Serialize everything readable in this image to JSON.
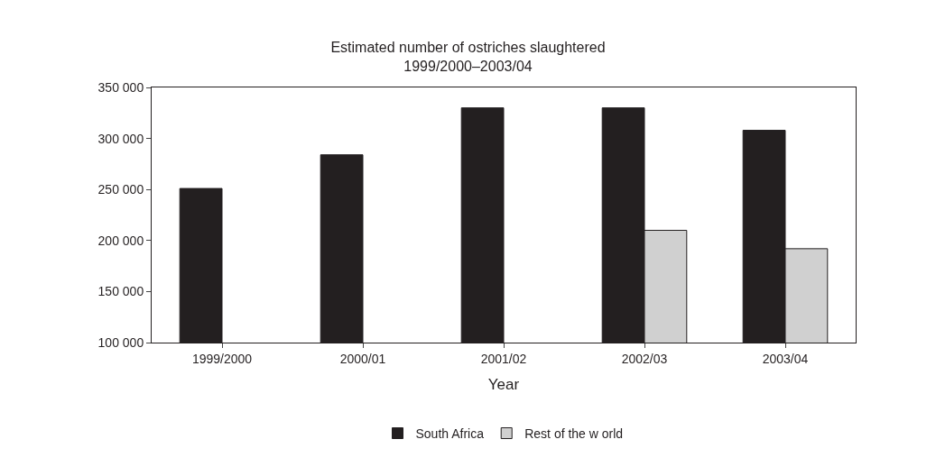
{
  "chart_data": {
    "type": "bar",
    "title": "Estimated number of ostriches slaughtered\n1999/2000–2003/04",
    "xlabel": "Year",
    "categories": [
      "1999/2000",
      "2000/01",
      "2001/02",
      "2002/03",
      "2003/04"
    ],
    "series": [
      {
        "name": "South Africa",
        "color": "#231f20",
        "values": [
          251000,
          284000,
          330000,
          330000,
          308000
        ]
      },
      {
        "name": "Rest of the w orld",
        "color": "#d0d0d0",
        "values": [
          null,
          null,
          null,
          210000,
          192000
        ]
      }
    ],
    "ylim": [
      100000,
      350000
    ],
    "yticks": [
      {
        "value": 100000,
        "label": "100 000"
      },
      {
        "value": 150000,
        "label": "150 000"
      },
      {
        "value": 200000,
        "label": "200 000"
      },
      {
        "value": 250000,
        "label": "250 000"
      },
      {
        "value": 300000,
        "label": "300 000"
      },
      {
        "value": 350000,
        "label": "350 000"
      }
    ],
    "grid": false,
    "legend": "bottom"
  }
}
